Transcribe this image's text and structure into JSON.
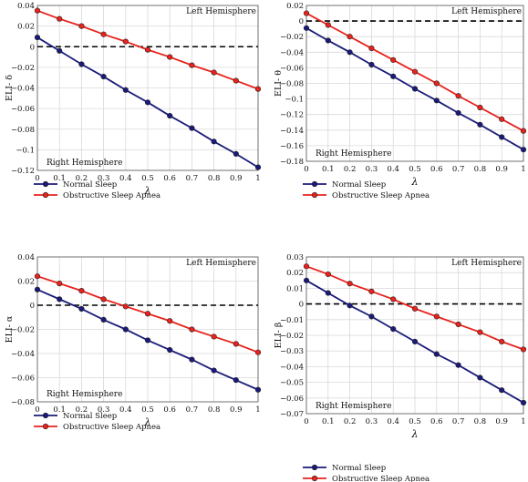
{
  "colors": {
    "normal": "#1a1a7a",
    "osa": "#e8221c",
    "grid": "#d9d9d9",
    "zero_line": "#000000"
  },
  "chart_data": [
    {
      "type": "line",
      "ylabel": "ELI- δ",
      "xlabel": "λ",
      "ylim": [
        -0.12,
        0.04
      ],
      "yticks": [
        0.04,
        0.02,
        0,
        -0.02,
        -0.04,
        -0.06,
        -0.08,
        -0.1,
        -0.12
      ],
      "ytick_labels": [
        "0.04",
        "0.02",
        "0",
        "−0.02",
        "−0.04",
        "−0.06",
        "−0.08",
        "−0.1",
        "−0.12"
      ],
      "x": [
        0,
        0.1,
        0.2,
        0.3,
        0.4,
        0.5,
        0.6,
        0.7,
        0.8,
        0.9,
        1
      ],
      "xtick_labels": [
        "0",
        "0.1",
        "0.2",
        "0.3",
        "0.4",
        "0.5",
        "0.6",
        "0.7",
        "0.8",
        "0.9",
        "1"
      ],
      "series": [
        {
          "name": "Normal Sleep",
          "values": [
            0.009,
            -0.004,
            -0.017,
            -0.029,
            -0.042,
            -0.054,
            -0.067,
            -0.079,
            -0.092,
            -0.104,
            -0.117
          ]
        },
        {
          "name": "Obstructive Sleep Apnea",
          "values": [
            0.035,
            0.027,
            0.02,
            0.012,
            0.005,
            -0.003,
            -0.01,
            -0.018,
            -0.025,
            -0.033,
            -0.041
          ]
        }
      ],
      "annotations": {
        "top_right": "Left Hemisphere",
        "bottom_left": "Right Hemisphere"
      },
      "legend": [
        "Normal Sleep",
        "Obstructive Sleep Apnea"
      ]
    },
    {
      "type": "line",
      "ylabel": "ELI- θ",
      "xlabel": "λ",
      "ylim": [
        -0.18,
        0.02
      ],
      "yticks": [
        0.02,
        0,
        -0.02,
        -0.04,
        -0.06,
        -0.08,
        -0.1,
        -0.12,
        -0.14,
        -0.16,
        -0.18
      ],
      "ytick_labels": [
        "0.02",
        "0",
        "−0.02",
        "−0.04",
        "−0.06",
        "−0.08",
        "−0.1",
        "−0.12",
        "−0.14",
        "−0.16",
        "−0.18"
      ],
      "x": [
        0,
        0.1,
        0.2,
        0.3,
        0.4,
        0.5,
        0.6,
        0.7,
        0.8,
        0.9,
        1
      ],
      "xtick_labels": [
        "0",
        "0.1",
        "0.2",
        "0.3",
        "0.4",
        "0.5",
        "0.6",
        "0.7",
        "0.8",
        "0.9",
        "1"
      ],
      "series": [
        {
          "name": "Normal Sleep",
          "values": [
            -0.009,
            -0.025,
            -0.04,
            -0.056,
            -0.071,
            -0.087,
            -0.102,
            -0.118,
            -0.133,
            -0.149,
            -0.165
          ]
        },
        {
          "name": "Obstructive Sleep Apnea",
          "values": [
            0.01,
            -0.005,
            -0.02,
            -0.035,
            -0.05,
            -0.065,
            -0.08,
            -0.096,
            -0.111,
            -0.126,
            -0.141
          ]
        }
      ],
      "annotations": {
        "top_right": "Left Hemisphere",
        "bottom_left": "Right Hemisphere"
      },
      "legend": [
        "Normal Sleep",
        "Obstructive Sleep Apnea"
      ]
    },
    {
      "type": "line",
      "ylabel": "ELI- α",
      "xlabel": "λ",
      "ylim": [
        -0.08,
        0.04
      ],
      "yticks": [
        0.04,
        0.02,
        0,
        -0.02,
        -0.04,
        -0.06,
        -0.08
      ],
      "ytick_labels": [
        "0.04",
        "0.02",
        "0",
        "−0.02",
        "−0.04",
        "−0.06",
        "−0.08"
      ],
      "x": [
        0,
        0.1,
        0.2,
        0.3,
        0.4,
        0.5,
        0.6,
        0.7,
        0.8,
        0.9,
        1
      ],
      "xtick_labels": [
        "0",
        "0.1",
        "0.2",
        "0.3",
        "0.4",
        "0.5",
        "0.6",
        "0.7",
        "0.8",
        "0.9",
        "1"
      ],
      "series": [
        {
          "name": "Normal Sleep",
          "values": [
            0.013,
            0.005,
            -0.003,
            -0.012,
            -0.02,
            -0.029,
            -0.037,
            -0.045,
            -0.054,
            -0.062,
            -0.07
          ]
        },
        {
          "name": "Obstructive Sleep Apnea",
          "values": [
            0.024,
            0.018,
            0.012,
            0.005,
            -0.001,
            -0.007,
            -0.013,
            -0.02,
            -0.026,
            -0.032,
            -0.039
          ]
        }
      ],
      "annotations": {
        "top_right": "Left Hemisphere",
        "bottom_left": "Right Hemisphere"
      },
      "legend": [
        "Normal Sleep",
        "Obstructive Sleep Apnea"
      ]
    },
    {
      "type": "line",
      "ylabel": "ELI- β",
      "xlabel": "λ",
      "ylim": [
        -0.07,
        0.03
      ],
      "yticks": [
        0.03,
        0.02,
        0.01,
        0,
        -0.01,
        -0.02,
        -0.03,
        -0.04,
        -0.05,
        -0.06,
        -0.07
      ],
      "ytick_labels": [
        "0.03",
        "0.02",
        "0.01",
        "0",
        "−0.01",
        "−0.02",
        "−0.03",
        "−0.04",
        "−0.05",
        "−0.06",
        "−0.07"
      ],
      "x": [
        0,
        0.1,
        0.2,
        0.3,
        0.4,
        0.5,
        0.6,
        0.7,
        0.8,
        0.9,
        1
      ],
      "xtick_labels": [
        "0",
        "0.1",
        "0.2",
        "0.3",
        "0.4",
        "0.5",
        "0.6",
        "0.7",
        "0.8",
        "0.9",
        "1"
      ],
      "series": [
        {
          "name": "Normal Sleep",
          "values": [
            0.015,
            0.007,
            -0.001,
            -0.008,
            -0.016,
            -0.024,
            -0.032,
            -0.039,
            -0.047,
            -0.055,
            -0.063
          ]
        },
        {
          "name": "Obstructive Sleep Apnea",
          "values": [
            0.024,
            0.019,
            0.013,
            0.008,
            0.003,
            -0.003,
            -0.008,
            -0.013,
            -0.018,
            -0.024,
            -0.029
          ]
        }
      ],
      "annotations": {
        "top_right": "Left Hemisphere",
        "bottom_left": "Right Hemisphere"
      },
      "legend": [
        "Normal Sleep",
        "Obstructive Sleep Apnea"
      ]
    }
  ]
}
